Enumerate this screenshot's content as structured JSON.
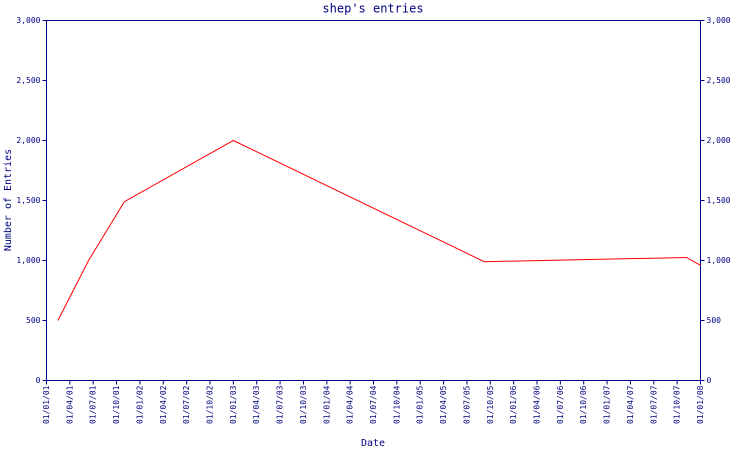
{
  "chart_data": {
    "type": "line",
    "title": "shep's entries",
    "xlabel": "Date",
    "ylabel": "Number of Entries",
    "xticks": [
      "01/01/01",
      "01/04/01",
      "01/07/01",
      "01/10/01",
      "01/01/02",
      "01/04/02",
      "01/07/02",
      "01/10/02",
      "01/01/03",
      "01/04/03",
      "01/07/03",
      "01/10/03",
      "01/01/04",
      "01/04/04",
      "01/07/04",
      "01/10/04",
      "01/01/05",
      "01/04/05",
      "01/07/05",
      "01/10/05",
      "01/01/06",
      "01/04/06",
      "01/07/06",
      "01/10/06",
      "01/01/07",
      "01/04/07",
      "01/07/07",
      "01/10/07",
      "01/01/08"
    ],
    "series": [
      {
        "name": "Number of Entries",
        "color": "#ff0000",
        "x": [
          "15/02/01",
          "13/06/01",
          "01/11/01",
          "01/01/03",
          "08/09/05",
          "07/11/07",
          "01/01/08"
        ],
        "values": [
          500,
          1000,
          1490,
          2000,
          990,
          1025,
          960
        ]
      }
    ],
    "ylim": [
      0,
      3000
    ],
    "yticks": [
      0,
      500,
      {
        "value": 1000,
        "label": "1,000"
      },
      {
        "value": 1500,
        "label": "1,500"
      },
      {
        "value": 2000,
        "label": "2,000"
      },
      {
        "value": 2500,
        "label": "2,500"
      },
      {
        "value": 3000,
        "label": "3,000"
      }
    ],
    "y2lim": [
      0,
      3000
    ],
    "y2ticks": [
      0,
      500,
      {
        "value": 1000,
        "label": "1,000"
      },
      {
        "value": 1500,
        "label": "1,500"
      },
      {
        "value": 2000,
        "label": "2,000"
      },
      {
        "value": 2500,
        "label": "2,500"
      },
      {
        "value": 3000,
        "label": "3,000"
      }
    ],
    "grid": false
  }
}
